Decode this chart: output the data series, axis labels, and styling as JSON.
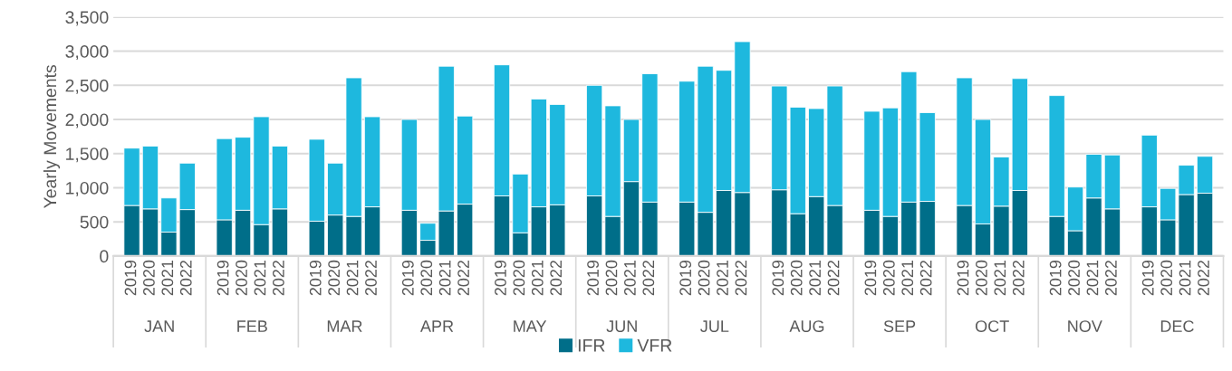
{
  "chart_data": {
    "type": "bar",
    "stacked": true,
    "ylabel": "Yearly Movements",
    "categories": [
      "2019",
      "2020",
      "2021",
      "2022",
      null,
      "2019",
      "2020",
      "2021",
      "2022",
      null,
      "2019",
      "2020",
      "2021",
      "2022",
      null,
      "2019",
      "2020",
      "2021",
      "2022",
      null,
      "2019",
      "2020",
      "2021",
      "2022",
      null,
      "2019",
      "2020",
      "2021",
      "2022",
      null,
      "2019",
      "2020",
      "2021",
      "2022",
      null,
      "2019",
      "2020",
      "2021",
      "2022",
      null,
      "2019",
      "2020",
      "2021",
      "2022",
      null,
      "2019",
      "2020",
      "2021",
      "2022",
      null,
      "2019",
      "2020",
      "2021",
      "2022",
      null,
      "2019",
      "2020",
      "2021",
      "2022"
    ],
    "annotations": [
      "JAN",
      "FEB",
      "MAR",
      "APR",
      "MAY",
      "JUN",
      "JUL",
      "AUG",
      "SEP",
      "OCT",
      "NOV",
      "DEC"
    ],
    "series": [
      {
        "name": "IFR",
        "color": "#006e89",
        "values": [
          740,
          690,
          350,
          680,
          null,
          530,
          670,
          460,
          690,
          null,
          510,
          600,
          580,
          720,
          null,
          670,
          230,
          660,
          760,
          null,
          880,
          340,
          720,
          750,
          null,
          880,
          580,
          1090,
          790,
          null,
          790,
          640,
          960,
          930,
          null,
          970,
          620,
          870,
          740,
          null,
          670,
          580,
          790,
          800,
          null,
          740,
          470,
          730,
          960,
          null,
          580,
          370,
          850,
          690,
          null,
          720,
          530,
          900,
          920
        ]
      },
      {
        "name": "VFR",
        "color": "#1eb8de",
        "values": [
          840,
          920,
          500,
          680,
          null,
          1190,
          1070,
          1580,
          920,
          null,
          1200,
          760,
          2030,
          1320,
          null,
          1330,
          250,
          2120,
          1290,
          null,
          1920,
          860,
          1580,
          1470,
          null,
          1620,
          1620,
          910,
          1880,
          null,
          1770,
          2140,
          1760,
          2210,
          null,
          1520,
          1560,
          1290,
          1750,
          null,
          1450,
          1590,
          1910,
          1300,
          null,
          1870,
          1530,
          720,
          1640,
          null,
          1770,
          640,
          640,
          790,
          null,
          1050,
          460,
          430,
          540
        ]
      }
    ],
    "ylim": [
      0,
      3500
    ],
    "yticks": [
      0,
      {
        "value": 500,
        "label": "500"
      },
      {
        "value": 1000,
        "label": "1,000"
      },
      {
        "value": 1500,
        "label": "1,500"
      },
      {
        "value": 2000,
        "label": "2,000"
      },
      {
        "value": 2500,
        "label": "2,500"
      },
      {
        "value": 3000,
        "label": "3,000"
      },
      {
        "value": 3500,
        "label": "3,500"
      }
    ],
    "grid": "y",
    "legend": "bottom"
  }
}
